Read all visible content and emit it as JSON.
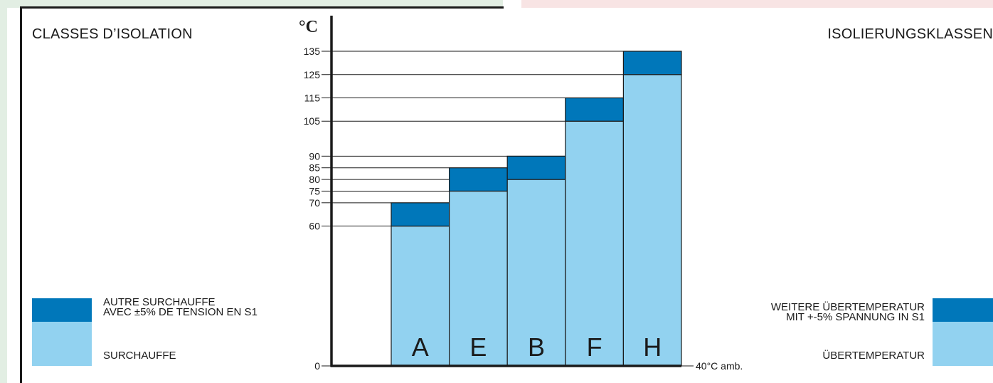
{
  "titles": {
    "left": "CLASSES D’ISOLATION",
    "right": "ISOLIERUNGSKLASSEN"
  },
  "legend": {
    "fr_extra_line1": "AUTRE SURCHAUFFE",
    "fr_extra_line2": "AVEC ±5% DE TENSION EN S1",
    "fr_base": "SURCHAUFFE",
    "de_extra_line1": "WEITERE ÜBERTEMPERATUR",
    "de_extra_line2": "MIT +-5% SPANNUNG IN S1",
    "de_base": "ÜBERTEMPERATUR"
  },
  "colors": {
    "base": "#92d2f0",
    "extra": "#0077ba",
    "line": "#1a1a1a",
    "bg_left": "#e2eee3",
    "bg_right": "#f8e4e4"
  },
  "chart_data": {
    "type": "bar",
    "stacked": true,
    "y_unit_label": "°C",
    "x_annotation": "40°C amb.",
    "categories": [
      "A",
      "E",
      "B",
      "F",
      "H"
    ],
    "series": [
      {
        "name": "SURCHAUFFE / ÜBERTEMPERATUR",
        "values": [
          60,
          75,
          80,
          105,
          125
        ]
      },
      {
        "name": "AUTRE SURCHAUFFE AVEC ±5% DE TENSION EN S1 / WEITERE ÜBERTEMPERATUR MIT +-5% SPANNUNG IN S1",
        "values": [
          10,
          10,
          10,
          10,
          10
        ]
      }
    ],
    "dashed_reference": {
      "category": "E",
      "value": 80
    },
    "yticks": [
      0,
      60,
      70,
      75,
      80,
      85,
      90,
      105,
      115,
      125,
      135
    ],
    "ylim": [
      0,
      135
    ],
    "grid": false,
    "legend_position": "bottom-left and bottom-right"
  }
}
